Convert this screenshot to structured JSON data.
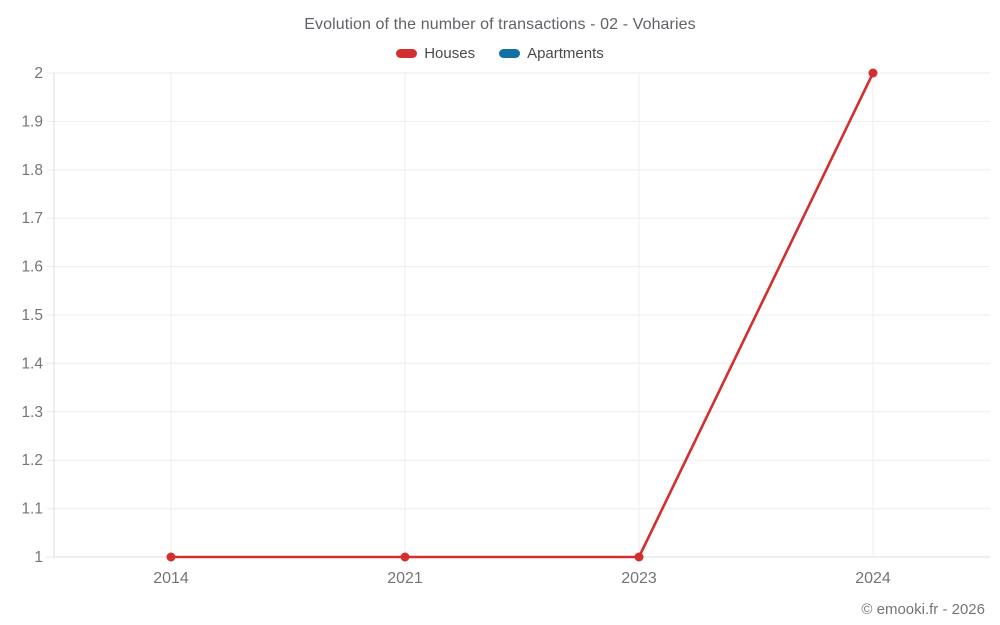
{
  "title": "Evolution of the number of transactions - 02 - Voharies",
  "legend": [
    {
      "label": "Houses",
      "color": "#d32f2f"
    },
    {
      "label": "Apartments",
      "color": "#1171a3"
    }
  ],
  "watermark": "© emooki.fr - 2026",
  "axis": {
    "x_labels": [
      "2014",
      "2021",
      "2023",
      "2024"
    ],
    "y_labels": [
      "1",
      "1.1",
      "1.2",
      "1.3",
      "1.4",
      "1.5",
      "1.6",
      "1.7",
      "1.8",
      "1.9",
      "2"
    ]
  },
  "chart_data": {
    "type": "line",
    "title": "Evolution of the number of transactions - 02 - Voharies",
    "categories": [
      "2014",
      "2021",
      "2023",
      "2024"
    ],
    "series": [
      {
        "name": "Houses",
        "color": "#d32f2f",
        "values": [
          1,
          1,
          1,
          2
        ]
      },
      {
        "name": "Apartments",
        "color": "#1171a3",
        "values": []
      }
    ],
    "xlabel": "",
    "ylabel": "",
    "ylim": [
      1,
      2
    ],
    "ytick_step": 0.1,
    "grid": true,
    "legend_position": "top"
  },
  "colors": {
    "background": "#ffffff",
    "gridline": "#ededed",
    "axis_line": "#dcdcdc",
    "tick_label": "#757575",
    "title_text": "#5f6368",
    "legend_text": "#4a4a4a",
    "watermark_text": "#757575"
  }
}
